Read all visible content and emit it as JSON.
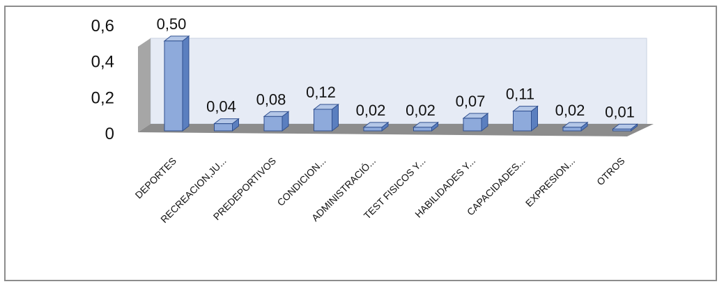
{
  "chart_data": {
    "type": "bar",
    "style": "3d-column",
    "categories": [
      "DEPORTES",
      "RECREACION,JU...",
      "PREDEPORTIVOS",
      "CONDICION...",
      "ADMINISTRACIÓ...",
      "TEST FISICOS Y...",
      "HABILIDADES Y...",
      "CAPACIDADES...",
      "EXPRESION...",
      "OTROS"
    ],
    "values": [
      0.5,
      0.04,
      0.08,
      0.12,
      0.02,
      0.02,
      0.07,
      0.11,
      0.02,
      0.01
    ],
    "value_labels": [
      "0,50",
      "0,04",
      "0,08",
      "0,12",
      "0,02",
      "0,02",
      "0,07",
      "0,11",
      "0,02",
      "0,01"
    ],
    "y_ticks": [
      "0",
      "0,2",
      "0,4",
      "0,6"
    ],
    "y_tick_values": [
      0,
      0.2,
      0.4,
      0.6
    ],
    "ylim": [
      0,
      0.6
    ],
    "grid": false,
    "legend": "none",
    "colors": {
      "bar_front": "#8eaadb",
      "bar_top": "#b4c7e7",
      "bar_side": "#5b7fbf",
      "bar_stroke": "#2f4f8f",
      "back_wall": "#e6ebf5",
      "side_wall": "#a6a6a6",
      "floor": "#8c8c8c",
      "frame": "#8c8c8c"
    }
  }
}
